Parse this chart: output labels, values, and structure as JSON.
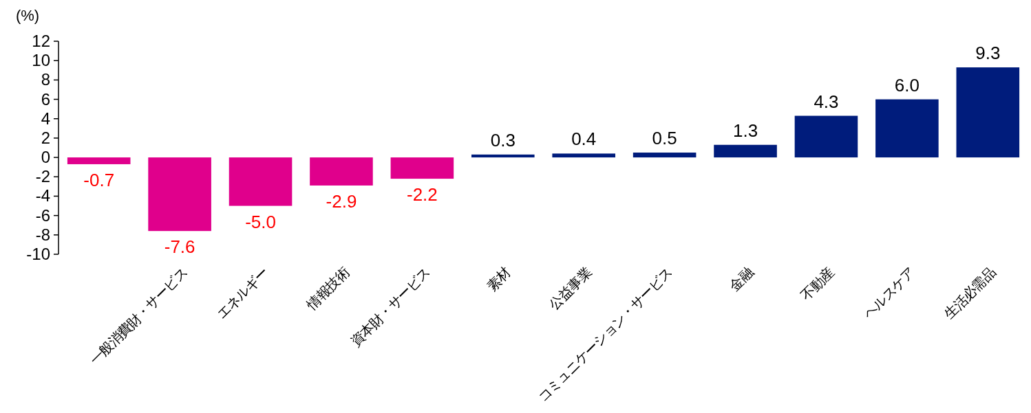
{
  "chart_data": {
    "type": "bar",
    "ylabel": "(%)",
    "categories": [
      null,
      "一般消費財・サービス",
      "エネルギー",
      "情報技術",
      "資本財・サービス",
      "素材",
      "公益事業",
      "コミュニケーション・サービス",
      "金融",
      "不動産",
      "ヘルスケア",
      "生活必需品"
    ],
    "values": [
      -0.7,
      -7.6,
      -5.0,
      -2.9,
      -2.2,
      0.3,
      0.4,
      0.5,
      1.3,
      4.3,
      6.0,
      9.3
    ],
    "value_labels": [
      "-0.7",
      "-7.6",
      "-5.0",
      "-2.9",
      "-2.2",
      "0.3",
      "0.4",
      "0.5",
      "1.3",
      "4.3",
      "6.0",
      "9.3"
    ],
    "colors": [
      "#e0008c",
      "#e0008c",
      "#e0008c",
      "#e0008c",
      "#e0008c",
      "#001c7c",
      "#001c7c",
      "#001c7c",
      "#001c7c",
      "#001c7c",
      "#001c7c",
      "#001c7c"
    ],
    "ylim": [
      -10,
      12
    ],
    "yticks": [
      -10,
      -8,
      -6,
      -4,
      -2,
      0,
      2,
      4,
      6,
      8,
      10,
      12
    ]
  }
}
